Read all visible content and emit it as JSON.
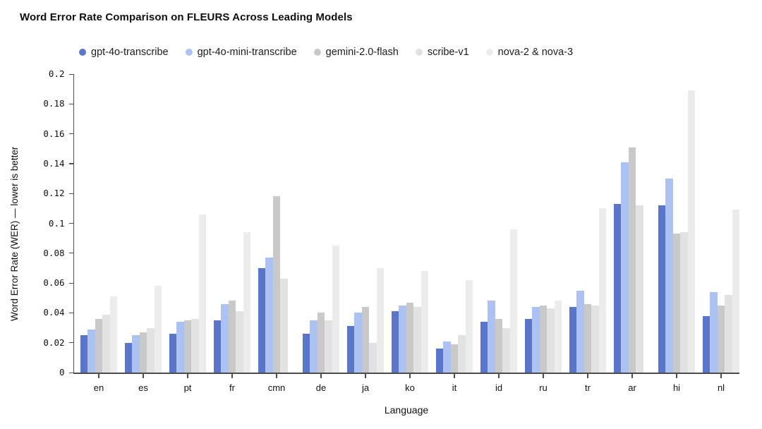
{
  "chart_data": {
    "type": "bar",
    "title": "Word Error Rate Comparison on FLEURS Across Leading Models",
    "xlabel": "Language",
    "ylabel": "Word Error Rate (WER) — lower is better",
    "ylim": [
      0,
      0.2
    ],
    "ytick_labels": [
      "0.2",
      "0.18",
      "0.16",
      "0.14",
      "0.12",
      "0.1",
      "0.08",
      "0.06",
      "0.04",
      "0.02",
      "0"
    ],
    "grid": false,
    "legend_position": "top-left",
    "categories": [
      "en",
      "es",
      "pt",
      "fr",
      "cmn",
      "de",
      "ja",
      "ko",
      "it",
      "id",
      "ru",
      "tr",
      "ar",
      "hi",
      "nl"
    ],
    "series": [
      {
        "name": "gpt-4o-transcribe",
        "color": "#5b76c8",
        "values": [
          0.025,
          0.02,
          0.026,
          0.035,
          0.07,
          0.026,
          0.031,
          0.041,
          0.016,
          0.034,
          0.036,
          0.044,
          0.113,
          0.112,
          0.038
        ]
      },
      {
        "name": "gpt-4o-mini-transcribe",
        "color": "#abc2f3",
        "values": [
          0.029,
          0.025,
          0.034,
          0.046,
          0.077,
          0.035,
          0.04,
          0.045,
          0.021,
          0.048,
          0.044,
          0.055,
          0.141,
          0.13,
          0.054
        ]
      },
      {
        "name": "gemini-2.0-flash",
        "color": "#c9c9c9",
        "values": [
          0.036,
          0.027,
          0.035,
          0.048,
          0.118,
          0.04,
          0.044,
          0.047,
          0.019,
          0.036,
          0.045,
          0.046,
          0.151,
          0.093,
          0.045
        ]
      },
      {
        "name": "scribe-v1",
        "color": "#e2e2e2",
        "values": [
          0.039,
          0.03,
          0.036,
          0.041,
          0.063,
          0.035,
          0.02,
          0.044,
          0.025,
          0.03,
          0.043,
          0.045,
          0.112,
          0.094,
          0.052
        ]
      },
      {
        "name": "nova-2 & nova-3",
        "color": "#ececec",
        "values": [
          0.051,
          0.058,
          0.106,
          0.094,
          null,
          0.085,
          0.07,
          0.068,
          0.062,
          0.096,
          0.048,
          0.11,
          null,
          0.189,
          0.109
        ]
      }
    ]
  }
}
